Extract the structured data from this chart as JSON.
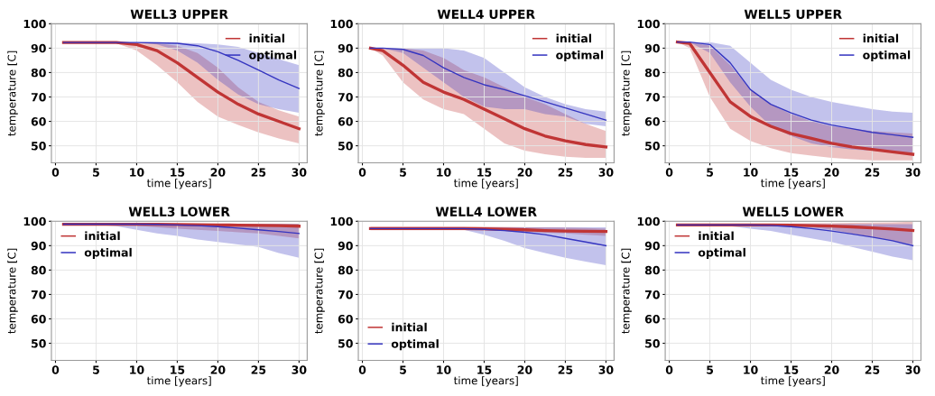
{
  "chart_data": [
    {
      "type": "line",
      "title": "WELL3 UPPER",
      "xlabel": "time [years]",
      "ylabel": "temperature [C]",
      "x": [
        1,
        2.5,
        5,
        7.5,
        10,
        12.5,
        15,
        17.5,
        20,
        22.5,
        25,
        27.5,
        30
      ],
      "xlim": [
        -0.5,
        31
      ],
      "ylim": [
        43,
        100
      ],
      "xticks": [
        0,
        5,
        10,
        15,
        20,
        25,
        30
      ],
      "yticks": [
        50,
        60,
        70,
        80,
        90,
        100
      ],
      "grid": true,
      "legend": "top right",
      "series": [
        {
          "name": "initial",
          "color": "#c03535",
          "values": [
            92.3,
            92.3,
            92.3,
            92.3,
            91.5,
            89,
            84,
            78,
            72,
            67,
            63,
            60,
            57
          ],
          "lower": [
            92.3,
            92.3,
            92.3,
            92,
            89,
            83,
            76,
            68,
            62,
            58.5,
            55.5,
            53,
            51
          ],
          "upper": [
            92.3,
            92.3,
            92.3,
            92.3,
            92.3,
            92,
            91,
            88,
            82,
            74,
            68,
            64.5,
            62
          ]
        },
        {
          "name": "optimal",
          "color": "#3535c0",
          "values": [
            92.3,
            92.3,
            92.3,
            92.3,
            92.3,
            92.2,
            92,
            91,
            88.5,
            85,
            81,
            77,
            73.5
          ],
          "lower": [
            92.3,
            92.3,
            92.3,
            92.3,
            92.2,
            91.5,
            89,
            84,
            77,
            71,
            67,
            65,
            63.5
          ],
          "upper": [
            92.3,
            92.3,
            92.3,
            92.3,
            92.3,
            92.3,
            92.3,
            92,
            91.5,
            90.5,
            88,
            85.5,
            83
          ]
        }
      ]
    },
    {
      "type": "line",
      "title": "WELL4 UPPER",
      "xlabel": "time [years]",
      "ylabel": "temperature [C]",
      "x": [
        1,
        2.5,
        5,
        7.5,
        10,
        12.5,
        15,
        17.5,
        20,
        22.5,
        25,
        27.5,
        30
      ],
      "xlim": [
        -0.5,
        31
      ],
      "ylim": [
        43,
        100
      ],
      "xticks": [
        0,
        5,
        10,
        15,
        20,
        25,
        30
      ],
      "yticks": [
        50,
        60,
        70,
        80,
        90,
        100
      ],
      "grid": true,
      "legend": "top right",
      "series": [
        {
          "name": "initial",
          "color": "#c03535",
          "values": [
            90,
            89,
            83,
            76,
            72,
            69,
            65,
            61,
            57,
            54,
            52,
            50.5,
            49.5
          ],
          "lower": [
            90,
            87,
            76,
            69,
            65,
            63,
            57,
            51,
            48,
            46.5,
            45.5,
            45,
            45
          ],
          "upper": [
            90,
            90,
            90,
            89,
            86,
            81,
            78,
            74,
            70,
            67,
            63,
            59,
            56
          ]
        },
        {
          "name": "optimal",
          "color": "#3535c0",
          "values": [
            90,
            90,
            89.5,
            87,
            82,
            78,
            75,
            73,
            70.5,
            68,
            65.5,
            63,
            60.5
          ],
          "lower": [
            90,
            90,
            88,
            82,
            76,
            70,
            66,
            65,
            65,
            63,
            62,
            59,
            58
          ],
          "upper": [
            90,
            90,
            90,
            90,
            90,
            89,
            86,
            80,
            74,
            70,
            67,
            65,
            64
          ]
        }
      ]
    },
    {
      "type": "line",
      "title": "WELL5 UPPER",
      "xlabel": "time [years]",
      "ylabel": "temperature [C]",
      "x": [
        1,
        2.5,
        5,
        7.5,
        10,
        12.5,
        15,
        17.5,
        20,
        22.5,
        25,
        27.5,
        30
      ],
      "xlim": [
        -0.5,
        31
      ],
      "ylim": [
        43,
        100
      ],
      "xticks": [
        0,
        5,
        10,
        15,
        20,
        25,
        30
      ],
      "yticks": [
        50,
        60,
        70,
        80,
        90,
        100
      ],
      "grid": true,
      "legend": "top right",
      "series": [
        {
          "name": "initial",
          "color": "#c03535",
          "values": [
            92.5,
            92,
            80,
            68,
            62,
            58,
            55,
            53,
            51,
            49.5,
            48.5,
            47.5,
            46.5
          ],
          "lower": [
            92.5,
            90,
            70,
            57,
            52,
            49,
            47,
            46,
            45,
            44.5,
            44,
            44,
            44
          ],
          "upper": [
            92.5,
            92.5,
            91,
            83,
            73,
            67,
            63,
            60,
            58,
            57,
            56,
            55.5,
            55
          ]
        },
        {
          "name": "optimal",
          "color": "#3535c0",
          "values": [
            92.5,
            92.5,
            91.5,
            84,
            73,
            67,
            63.5,
            60.5,
            58.5,
            57,
            55.5,
            54.5,
            53.5
          ],
          "lower": [
            92.5,
            92.5,
            88,
            76,
            66,
            58,
            54,
            51,
            49.5,
            48.5,
            48,
            47.5,
            47
          ],
          "upper": [
            92.5,
            92.5,
            92.5,
            91,
            84,
            77,
            73,
            70,
            68,
            66.5,
            65,
            64,
            63.5
          ]
        }
      ]
    },
    {
      "type": "line",
      "title": "WELL3 LOWER",
      "xlabel": "time [years]",
      "ylabel": "temperature [C]",
      "x": [
        1,
        2.5,
        5,
        7.5,
        10,
        12.5,
        15,
        17.5,
        20,
        22.5,
        25,
        27.5,
        30
      ],
      "xlim": [
        -0.5,
        31
      ],
      "ylim": [
        43,
        100
      ],
      "xticks": [
        0,
        5,
        10,
        15,
        20,
        25,
        30
      ],
      "yticks": [
        50,
        60,
        70,
        80,
        90,
        100
      ],
      "grid": true,
      "legend": "top left",
      "series": [
        {
          "name": "initial",
          "color": "#c03535",
          "values": [
            98.8,
            98.8,
            98.8,
            98.8,
            98.8,
            98.8,
            98.7,
            98.6,
            98.5,
            98.4,
            98.3,
            98.2,
            98
          ],
          "lower": [
            98.8,
            98.8,
            98.8,
            98.6,
            98.2,
            97.5,
            97,
            96.5,
            96,
            95.5,
            95,
            94,
            93
          ],
          "upper": [
            98.8,
            98.8,
            98.8,
            98.8,
            98.9,
            98.9,
            98.9,
            98.9,
            98.9,
            98.9,
            99,
            99,
            99
          ]
        },
        {
          "name": "optimal",
          "color": "#3535c0",
          "values": [
            98.8,
            98.8,
            98.8,
            98.8,
            98.8,
            98.7,
            98.5,
            98.2,
            97.8,
            97.2,
            96.5,
            95.8,
            95
          ],
          "lower": [
            98.8,
            98.8,
            98.5,
            98,
            96.5,
            95,
            94,
            92.5,
            91.5,
            90.5,
            89.5,
            87,
            85
          ],
          "upper": [
            98.8,
            98.8,
            98.8,
            98.8,
            98.9,
            98.9,
            98.9,
            98.9,
            98.9,
            98.9,
            98.9,
            98.9,
            98.9
          ]
        }
      ]
    },
    {
      "type": "line",
      "title": "WELL4 LOWER",
      "xlabel": "time [years]",
      "ylabel": "temperature [C]",
      "x": [
        1,
        2.5,
        5,
        7.5,
        10,
        12.5,
        15,
        17.5,
        20,
        22.5,
        25,
        27.5,
        30
      ],
      "xlim": [
        -0.5,
        31
      ],
      "ylim": [
        43,
        100
      ],
      "xticks": [
        0,
        5,
        10,
        15,
        20,
        25,
        30
      ],
      "yticks": [
        50,
        60,
        70,
        80,
        90,
        100
      ],
      "grid": true,
      "legend": "bottom left",
      "series": [
        {
          "name": "initial",
          "color": "#c03535",
          "values": [
            97,
            97,
            97,
            97,
            97,
            97,
            96.9,
            96.7,
            96.5,
            96.2,
            96,
            95.9,
            95.8
          ],
          "lower": [
            96.3,
            96.3,
            96.3,
            96.3,
            96.3,
            96.3,
            96.2,
            96,
            95.7,
            95.3,
            95,
            94.5,
            94
          ],
          "upper": [
            97.8,
            97.8,
            97.8,
            97.8,
            97.8,
            97.8,
            97.8,
            97.7,
            97.6,
            97.5,
            97.4,
            97.2,
            97
          ]
        },
        {
          "name": "optimal",
          "color": "#3535c0",
          "values": [
            97,
            97,
            97,
            97,
            97,
            97,
            96.7,
            96.2,
            95.5,
            94.5,
            93,
            91.5,
            90
          ],
          "lower": [
            97,
            97,
            97,
            97,
            97,
            96.5,
            94.5,
            92,
            89,
            87,
            85,
            83.5,
            82
          ],
          "upper": [
            97.5,
            97.5,
            97.5,
            97.5,
            97.5,
            97.5,
            97.5,
            97.5,
            97.5,
            97.5,
            97.5,
            97.5,
            97.5
          ]
        }
      ]
    },
    {
      "type": "line",
      "title": "WELL5 LOWER",
      "xlabel": "time [years]",
      "ylabel": "temperature [C]",
      "x": [
        1,
        2.5,
        5,
        7.5,
        10,
        12.5,
        15,
        17.5,
        20,
        22.5,
        25,
        27.5,
        30
      ],
      "xlim": [
        -0.5,
        31
      ],
      "ylim": [
        43,
        100
      ],
      "xticks": [
        0,
        5,
        10,
        15,
        20,
        25,
        30
      ],
      "yticks": [
        50,
        60,
        70,
        80,
        90,
        100
      ],
      "grid": true,
      "legend": "top left",
      "series": [
        {
          "name": "initial",
          "color": "#c03535",
          "values": [
            98.5,
            98.5,
            98.5,
            98.5,
            98.5,
            98.5,
            98.4,
            98.2,
            98,
            97.7,
            97.3,
            96.8,
            96.2
          ],
          "lower": [
            98.5,
            98.5,
            98.5,
            98.5,
            98.5,
            98.3,
            98,
            97.5,
            96.5,
            95,
            93.5,
            92,
            90.5
          ],
          "upper": [
            98.8,
            98.8,
            98.8,
            98.8,
            98.9,
            99,
            99.1,
            99.2,
            99.3,
            99.4,
            99.5,
            99.6,
            99.8
          ]
        },
        {
          "name": "optimal",
          "color": "#3535c0",
          "values": [
            98.5,
            98.5,
            98.5,
            98.5,
            98.5,
            98.3,
            97.8,
            97,
            96,
            94.8,
            93.5,
            92,
            90
          ],
          "lower": [
            98.5,
            98.5,
            98.5,
            98,
            97,
            96,
            94.5,
            93,
            91.5,
            89.5,
            87.5,
            85.5,
            84
          ],
          "upper": [
            98.8,
            98.8,
            98.8,
            98.8,
            98.8,
            98.8,
            98.8,
            98.8,
            98.8,
            98.8,
            98.8,
            98.8,
            98.8
          ]
        }
      ]
    }
  ]
}
